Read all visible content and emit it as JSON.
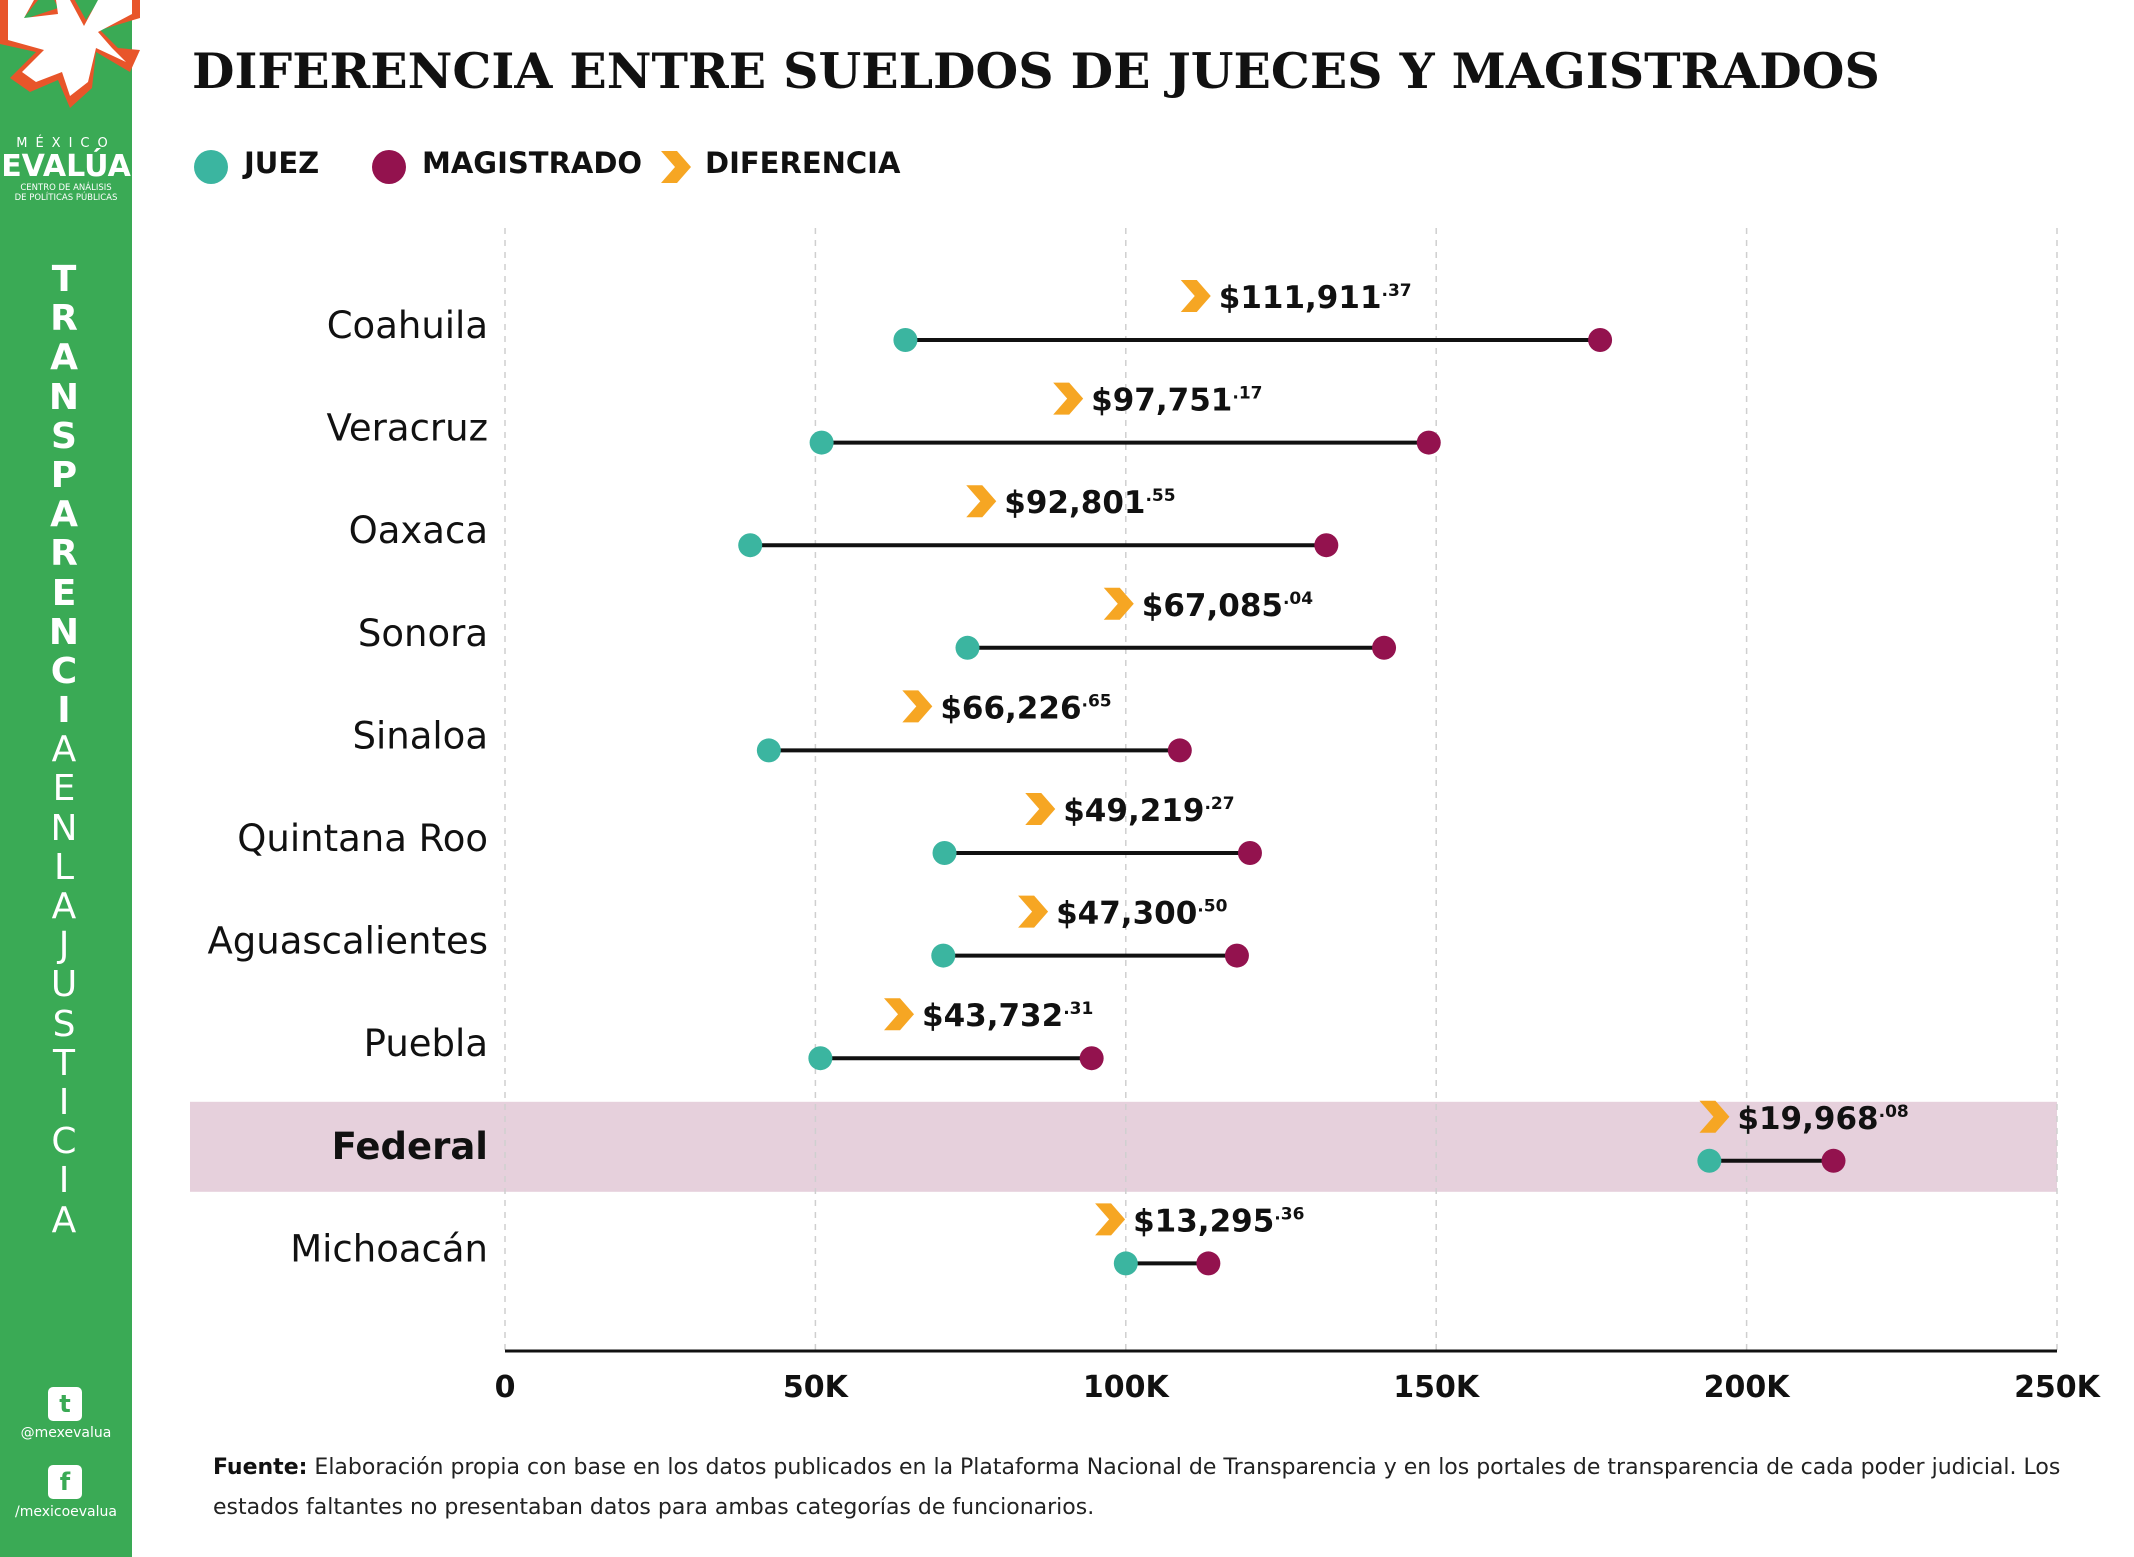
{
  "title": "DIFERENCIA ENTRE SUELDOS DE JUECES Y MAGISTRADOS",
  "logo": {
    "country": "MÉXICO",
    "name": "EVALÚA",
    "subtitle_line1": "CENTRO DE ANÁLISIS",
    "subtitle_line2": "DE POLÍTICAS PÚBLICAS"
  },
  "sidebar": {
    "vertical_text": "TRANSPARENCIAENLAJUSTICIA",
    "bold_count": 12,
    "twitter_handle": "@mexevalua",
    "facebook_handle": "/mexicoevalua",
    "twitter_icon": "twitter-icon",
    "facebook_icon": "facebook-icon"
  },
  "legend": {
    "juez": "JUEZ",
    "magistrado": "MAGISTRADO",
    "diferencia": "DIFERENCIA"
  },
  "colors": {
    "juez": "#3bb5a0",
    "magistrado": "#93124e",
    "diferencia": "#f6a623",
    "sidebar": "#3aaa55",
    "highlight": "#e6d0dc"
  },
  "footnote": {
    "label": "Fuente:",
    "text": "Elaboración propia con base en los datos publicados en la Plataforma Nacional de Transparencia y en los portales de transparencia de cada poder judicial. Los estados faltantes no presentaban datos para ambas categorías de funcionarios."
  },
  "chart_data": {
    "type": "dumbbell",
    "title": "DIFERENCIA ENTRE SUELDOS DE JUECES Y MAGISTRADOS",
    "xlim": [
      0,
      250000
    ],
    "x_ticks": [
      0,
      50000,
      100000,
      150000,
      200000,
      250000
    ],
    "x_tick_labels": [
      "0",
      "50K",
      "100K",
      "150K",
      "200K",
      "250K"
    ],
    "grid": "vertical dashed",
    "legend_position": "top-left",
    "highlighted_category": "Federal",
    "series": [
      {
        "name": "JUEZ"
      },
      {
        "name": "MAGISTRADO"
      },
      {
        "name": "DIFERENCIA"
      }
    ],
    "rows": [
      {
        "category": "Coahuila",
        "juez": 64500,
        "magistrado": 176400,
        "diff_main": "$111,911",
        "diff_cents": ".37"
      },
      {
        "category": "Veracruz",
        "juez": 51000,
        "magistrado": 148800,
        "diff_main": "$97,751",
        "diff_cents": ".17"
      },
      {
        "category": "Oaxaca",
        "juez": 39500,
        "magistrado": 132300,
        "diff_main": "$92,801",
        "diff_cents": ".55"
      },
      {
        "category": "Sonora",
        "juez": 74500,
        "magistrado": 141600,
        "diff_main": "$67,085",
        "diff_cents": ".04"
      },
      {
        "category": "Sinaloa",
        "juez": 42500,
        "magistrado": 108700,
        "diff_main": "$66,226",
        "diff_cents": ".65"
      },
      {
        "category": "Quintana Roo",
        "juez": 70800,
        "magistrado": 120000,
        "diff_main": "$49,219",
        "diff_cents": ".27"
      },
      {
        "category": "Aguascalientes",
        "juez": 70600,
        "magistrado": 117900,
        "diff_main": "$47,300",
        "diff_cents": ".50"
      },
      {
        "category": "Puebla",
        "juez": 50800,
        "magistrado": 94500,
        "diff_main": "$43,732",
        "diff_cents": ".31"
      },
      {
        "category": "Federal",
        "juez": 194000,
        "magistrado": 214000,
        "diff_main": "$19,968",
        "diff_cents": ".08"
      },
      {
        "category": "Michoacán",
        "juez": 100000,
        "magistrado": 113300,
        "diff_main": "$13,295",
        "diff_cents": ".36"
      }
    ]
  }
}
